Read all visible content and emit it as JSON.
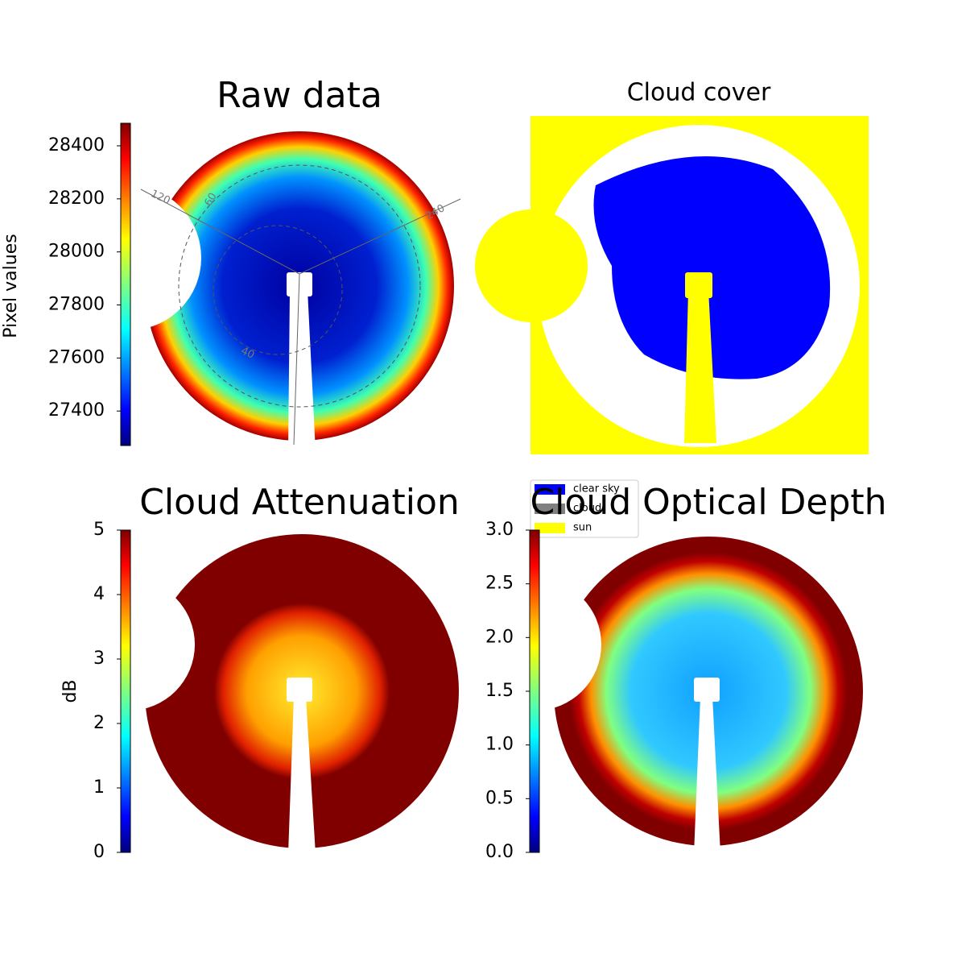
{
  "chart_data": [
    {
      "type": "image",
      "title": "Raw data",
      "colorbar_label": "Pixel values",
      "colormap": "jet",
      "clim": [
        27270,
        28485
      ],
      "cticks": [
        27400,
        27600,
        27800,
        28000,
        28200,
        28400
      ],
      "annotations": [
        "120",
        "60",
        "240",
        "40"
      ]
    },
    {
      "type": "classification",
      "title": "Cloud cover",
      "series": [
        {
          "name": "clear sky",
          "color": "#0000ff"
        },
        {
          "name": "cloud",
          "color": "#808080"
        },
        {
          "name": "sun",
          "color": "#ffff00"
        }
      ]
    },
    {
      "type": "image",
      "title": "Cloud Attenuation",
      "colorbar_label": "dB",
      "colormap": "jet",
      "clim": [
        0,
        5
      ],
      "cticks": [
        0,
        1,
        2,
        3,
        4,
        5
      ]
    },
    {
      "type": "image",
      "title": "Cloud Optical Depth",
      "colormap": "jet",
      "clim": [
        0,
        3
      ],
      "cticks": [
        {
          "value": 0,
          "label": "0.0"
        },
        0.5,
        {
          "value": 1,
          "label": "1.0"
        },
        1.5,
        {
          "value": 2,
          "label": "2.0"
        },
        2.5,
        {
          "value": 3,
          "label": "3.0"
        }
      ]
    }
  ]
}
